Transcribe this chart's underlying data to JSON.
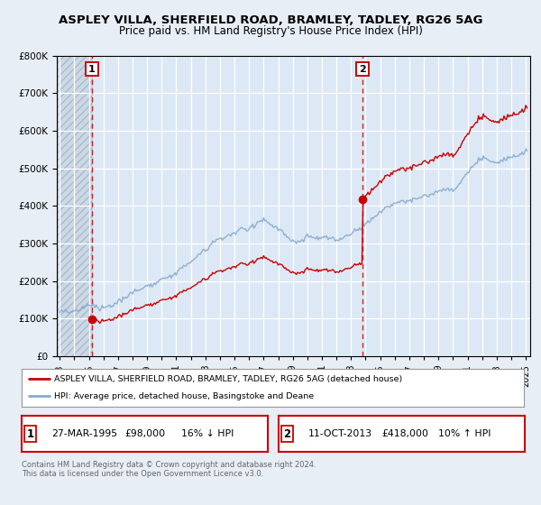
{
  "title_line1": "ASPLEY VILLA, SHERFIELD ROAD, BRAMLEY, TADLEY, RG26 5AG",
  "title_line2": "Price paid vs. HM Land Registry's House Price Index (HPI)",
  "bg_color": "#e8eef5",
  "plot_bg_color": "#dce8f5",
  "grid_color": "#c8d8e8",
  "hatch_bg_color": "#ccd8e5",
  "sale1_date": "27-MAR-1995",
  "sale1_price": 98000,
  "sale1_label": "16% ↓ HPI",
  "sale2_date": "11-OCT-2013",
  "sale2_price": 418000,
  "sale2_label": "10% ↑ HPI",
  "legend_line1": "ASPLEY VILLA, SHERFIELD ROAD, BRAMLEY, TADLEY, RG26 5AG (detached house)",
  "legend_line2": "HPI: Average price, detached house, Basingstoke and Deane",
  "footer": "Contains HM Land Registry data © Crown copyright and database right 2024.\nThis data is licensed under the Open Government Licence v3.0.",
  "red_color": "#cc0000",
  "blue_color": "#88aacc",
  "sale1_x": 1995.21,
  "sale2_x": 2013.79,
  "ylim_min": 0,
  "ylim_max": 800000,
  "xlim_min": 1992.8,
  "xlim_max": 2025.3
}
